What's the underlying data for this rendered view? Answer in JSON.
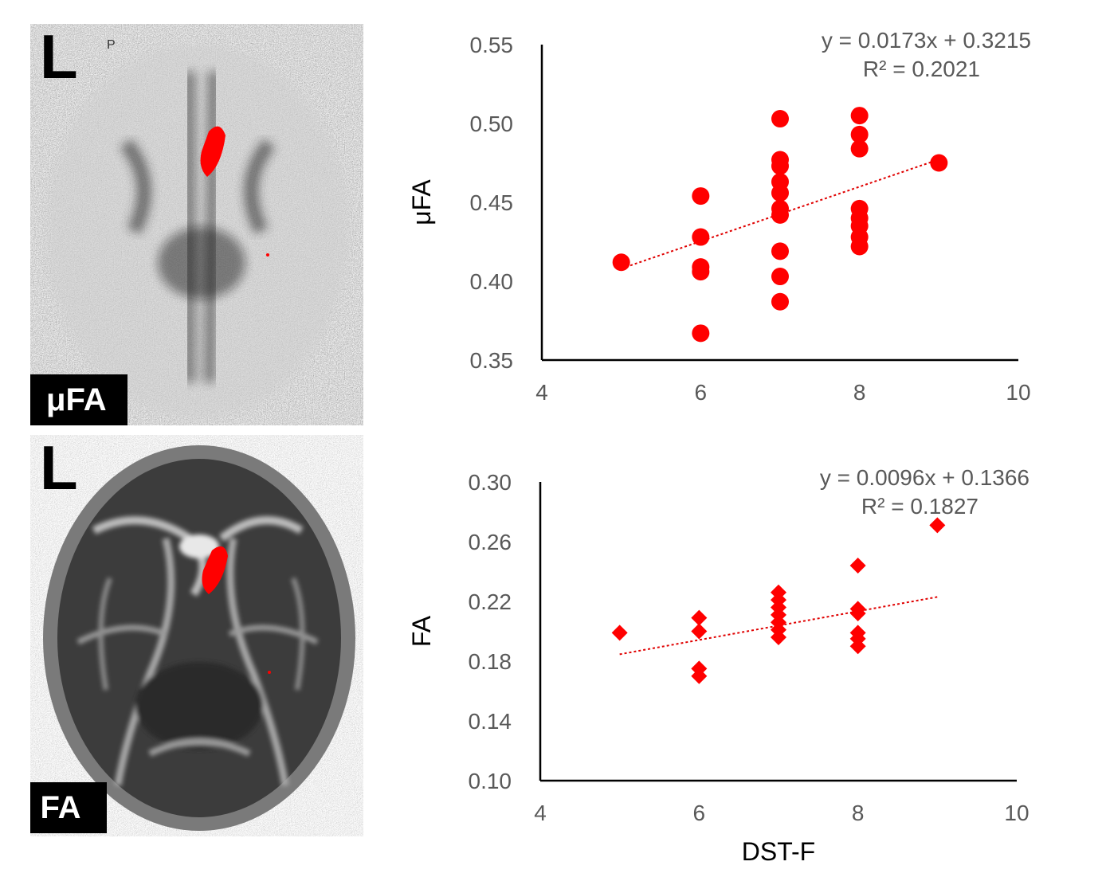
{
  "panels": {
    "top": {
      "orientation_label": "L",
      "corner_mark": "P",
      "map_label": "μFA"
    },
    "bottom": {
      "orientation_label": "L",
      "map_label": "FA"
    }
  },
  "colors": {
    "marker": "#ff0000",
    "trendline": "#e00000",
    "axis": "#000000",
    "tick_text": "#595959"
  },
  "chart_data": [
    {
      "type": "scatter",
      "marker": "circle",
      "ylabel": "μFA",
      "xlabel": "",
      "xlim": [
        4,
        10
      ],
      "ylim": [
        0.35,
        0.55
      ],
      "x_ticks": [
        4,
        6,
        8,
        10
      ],
      "x_tick_labels": [
        "4",
        "6",
        "8",
        "10"
      ],
      "y_ticks": [
        0.35,
        0.4,
        0.45,
        0.5,
        0.55
      ],
      "y_tick_labels": [
        "0.35",
        "0.40",
        "0.45",
        "0.50",
        "0.55"
      ],
      "trendline": {
        "slope": 0.0173,
        "intercept": 0.3215,
        "x_range": [
          5,
          9
        ]
      },
      "equation": "y = 0.0173x + 0.3215",
      "r_squared": "R² = 0.2021",
      "points": [
        [
          5,
          0.412
        ],
        [
          6,
          0.454
        ],
        [
          6,
          0.428
        ],
        [
          6,
          0.409
        ],
        [
          6,
          0.406
        ],
        [
          6,
          0.367
        ],
        [
          7,
          0.503
        ],
        [
          7,
          0.477
        ],
        [
          7,
          0.473
        ],
        [
          7,
          0.463
        ],
        [
          7,
          0.456
        ],
        [
          7,
          0.446
        ],
        [
          7,
          0.442
        ],
        [
          7,
          0.419
        ],
        [
          7,
          0.403
        ],
        [
          7,
          0.387
        ],
        [
          8,
          0.505
        ],
        [
          8,
          0.493
        ],
        [
          8,
          0.484
        ],
        [
          8,
          0.446
        ],
        [
          8,
          0.44
        ],
        [
          8,
          0.435
        ],
        [
          8,
          0.428
        ],
        [
          8,
          0.422
        ],
        [
          9,
          0.475
        ]
      ]
    },
    {
      "type": "scatter",
      "marker": "diamond",
      "ylabel": "FA",
      "xlabel": "DST-F",
      "xlim": [
        4,
        10
      ],
      "ylim": [
        0.1,
        0.3
      ],
      "x_ticks": [
        4,
        6,
        8,
        10
      ],
      "x_tick_labels": [
        "4",
        "6",
        "8",
        "10"
      ],
      "y_ticks": [
        0.1,
        0.14,
        0.18,
        0.22,
        0.26,
        0.3
      ],
      "y_tick_labels": [
        "0.10",
        "0.14",
        "0.18",
        "0.22",
        "0.26",
        "0.30"
      ],
      "trendline": {
        "slope": 0.0096,
        "intercept": 0.1366,
        "x_range": [
          5,
          9
        ]
      },
      "equation": "y = 0.0096x + 0.1366",
      "r_squared": "R² = 0.1827",
      "points": [
        [
          5,
          0.199
        ],
        [
          6,
          0.209
        ],
        [
          6,
          0.2
        ],
        [
          6,
          0.175
        ],
        [
          6,
          0.17
        ],
        [
          7,
          0.226
        ],
        [
          7,
          0.221
        ],
        [
          7,
          0.216
        ],
        [
          7,
          0.211
        ],
        [
          7,
          0.206
        ],
        [
          7,
          0.201
        ],
        [
          7,
          0.196
        ],
        [
          8,
          0.244
        ],
        [
          8,
          0.215
        ],
        [
          8,
          0.212
        ],
        [
          8,
          0.199
        ],
        [
          8,
          0.195
        ],
        [
          8,
          0.19
        ],
        [
          9,
          0.271
        ]
      ]
    }
  ]
}
